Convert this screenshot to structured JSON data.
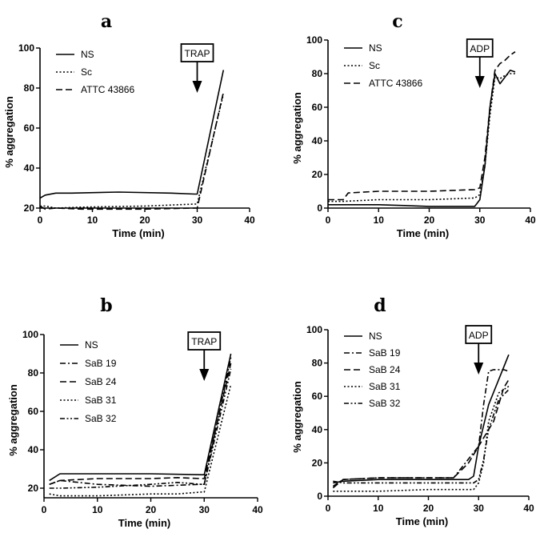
{
  "chart_data": [
    {
      "panel": "a",
      "type": "line",
      "xlabel": "Time (min)",
      "ylabel": "% aggregation",
      "xlim": [
        0,
        40
      ],
      "ylim": [
        20,
        100
      ],
      "xticks": [
        0,
        10,
        20,
        30,
        40
      ],
      "yticks": [
        20,
        40,
        60,
        80,
        100
      ],
      "marker": {
        "label": "TRAP",
        "x": 30
      },
      "legend_position": "top-left",
      "series": [
        {
          "name": "NS",
          "dash": "solid",
          "x": [
            0,
            1,
            3,
            6,
            15,
            25,
            29.5,
            30,
            35
          ],
          "y": [
            25,
            26.5,
            27.5,
            27.5,
            28,
            27.5,
            27,
            27,
            89
          ]
        },
        {
          "name": "Sc",
          "dash": "dot",
          "x": [
            0,
            1,
            3,
            8,
            20,
            29.5,
            30,
            35
          ],
          "y": [
            21,
            21,
            20,
            20.5,
            21,
            22,
            22,
            77
          ]
        },
        {
          "name": "ATTC 43866",
          "dash": "dash",
          "x": [
            0,
            1,
            3,
            8,
            20,
            29.5,
            30,
            35
          ],
          "y": [
            21,
            19.5,
            20,
            19.5,
            19.5,
            20,
            20,
            78
          ]
        }
      ]
    },
    {
      "panel": "c",
      "type": "line",
      "xlabel": "Time (min)",
      "ylabel": "% aggregation",
      "xlim": [
        0,
        40
      ],
      "ylim": [
        0,
        100
      ],
      "xticks": [
        0,
        10,
        20,
        30,
        40
      ],
      "yticks": [
        0,
        20,
        40,
        60,
        80,
        100
      ],
      "marker": {
        "label": "ADP",
        "x": 30
      },
      "legend_position": "top-left",
      "series": [
        {
          "name": "NS",
          "dash": "solid",
          "x": [
            0,
            3,
            10,
            20,
            29,
            30,
            31,
            32,
            33,
            34,
            35,
            36,
            37
          ],
          "y": [
            2,
            2,
            2,
            1,
            1,
            5,
            25,
            60,
            80,
            74,
            78,
            82,
            81
          ]
        },
        {
          "name": "Sc",
          "dash": "dot",
          "x": [
            0,
            3,
            10,
            20,
            29,
            30,
            31,
            32,
            33,
            34,
            35,
            36,
            37
          ],
          "y": [
            4,
            4,
            5,
            5,
            6,
            8,
            25,
            55,
            78,
            77,
            79,
            80,
            80
          ]
        },
        {
          "name": "ATTC 43866",
          "dash": "dash",
          "x": [
            0,
            3,
            4,
            10,
            20,
            29,
            30,
            31,
            32,
            33,
            34,
            35,
            36,
            37
          ],
          "y": [
            5,
            5,
            9,
            10,
            10,
            11,
            12,
            30,
            60,
            82,
            86,
            88,
            91,
            93
          ]
        }
      ]
    },
    {
      "panel": "b",
      "type": "line",
      "xlabel": "Time (min)",
      "ylabel": "% aggregation",
      "xlim": [
        0,
        40
      ],
      "ylim": [
        15,
        100
      ],
      "xticks": [
        0,
        10,
        20,
        30,
        40
      ],
      "yticks": [
        20,
        40,
        60,
        80,
        100
      ],
      "marker": {
        "label": "TRAP",
        "x": 30
      },
      "legend_position": "top-left",
      "series": [
        {
          "name": "NS",
          "dash": "solid",
          "x": [
            1,
            3,
            10,
            20,
            29.5,
            30,
            35
          ],
          "y": [
            24,
            27.5,
            27.5,
            27.5,
            27,
            27,
            90
          ]
        },
        {
          "name": "SaB 19",
          "dash": "dashdot",
          "x": [
            1,
            3,
            10,
            20,
            29.5,
            30,
            35
          ],
          "y": [
            22,
            24,
            22,
            21,
            22,
            22,
            88
          ]
        },
        {
          "name": "SaB 24",
          "dash": "dash",
          "x": [
            1,
            3,
            10,
            20,
            25,
            29.5,
            30,
            35
          ],
          "y": [
            22,
            24,
            25,
            25,
            25.5,
            25,
            25,
            85
          ]
        },
        {
          "name": "SaB 31",
          "dash": "dot",
          "x": [
            1,
            3,
            10,
            20,
            25,
            29.5,
            30,
            35
          ],
          "y": [
            17,
            16,
            16,
            17,
            17,
            18,
            18,
            74
          ]
        },
        {
          "name": "SaB 32",
          "dash": "dashdotdot",
          "x": [
            1,
            3,
            10,
            20,
            25,
            29.5,
            30,
            35
          ],
          "y": [
            20,
            20,
            20.5,
            22,
            23,
            22,
            22,
            82
          ]
        }
      ]
    },
    {
      "panel": "d",
      "type": "line",
      "xlabel": "Time (min)",
      "ylabel": "% aggregation",
      "xlim": [
        0,
        40
      ],
      "ylim": [
        0,
        100
      ],
      "xticks": [
        0,
        10,
        20,
        30,
        40
      ],
      "yticks": [
        0,
        20,
        40,
        60,
        80,
        100
      ],
      "marker": {
        "label": "ADP",
        "x": 30
      },
      "legend_position": "top-left",
      "series": [
        {
          "name": "NS",
          "dash": "solid",
          "x": [
            1,
            3,
            10,
            20,
            25,
            28,
            29,
            30,
            32,
            36
          ],
          "y": [
            8,
            9,
            10,
            10,
            10,
            10,
            12,
            30,
            55,
            85
          ]
        },
        {
          "name": "SaB 19",
          "dash": "dashdot",
          "x": [
            1,
            3,
            10,
            20,
            25,
            30,
            31,
            32,
            33,
            34,
            35,
            36
          ],
          "y": [
            6,
            10,
            11,
            11,
            11,
            30,
            55,
            75,
            76,
            76,
            76,
            75
          ]
        },
        {
          "name": "SaB 24",
          "dash": "dash",
          "x": [
            1,
            3,
            10,
            20,
            25,
            28,
            30,
            31,
            33,
            35,
            36
          ],
          "y": [
            5,
            10,
            11,
            11,
            11,
            20,
            30,
            35,
            45,
            65,
            70
          ]
        },
        {
          "name": "SaB 31",
          "dash": "dot",
          "x": [
            1,
            3,
            10,
            20,
            25,
            29,
            30,
            31,
            32,
            34,
            36
          ],
          "y": [
            3,
            3,
            3,
            4,
            4,
            4,
            8,
            20,
            45,
            62,
            66
          ]
        },
        {
          "name": "SaB 32",
          "dash": "dashdotdot",
          "x": [
            1,
            3,
            10,
            20,
            25,
            29,
            30,
            31,
            32,
            34,
            36
          ],
          "y": [
            9,
            8,
            8,
            8,
            8,
            8,
            10,
            22,
            40,
            58,
            64
          ]
        }
      ]
    }
  ]
}
